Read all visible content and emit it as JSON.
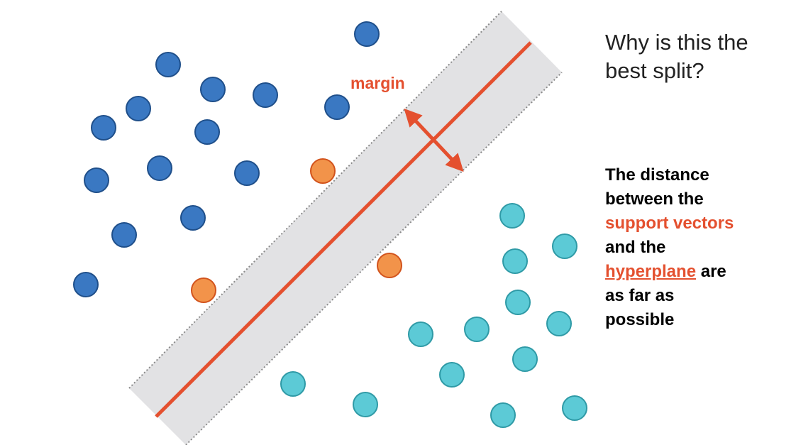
{
  "question": "Why is this the best split?",
  "margin_label": "margin",
  "explanation": {
    "line1": "The distance",
    "line2": "between the",
    "support_vectors": "support vectors",
    "line4": "and the",
    "hyperplane": "hyperplane",
    "line5_rest": " are",
    "line6": "as far as",
    "line7": "possible"
  },
  "colors": {
    "class_a": "#3a78c2",
    "class_a_stroke": "#1f4f8a",
    "class_b": "#5ccad6",
    "class_b_stroke": "#2f9aa6",
    "support_vector": "#f2934a",
    "support_vector_stroke": "#d2531c",
    "hyperplane": "#e4502f",
    "margin_band": "#e2e2e4",
    "margin_edge": "#8a8a8a"
  }
}
